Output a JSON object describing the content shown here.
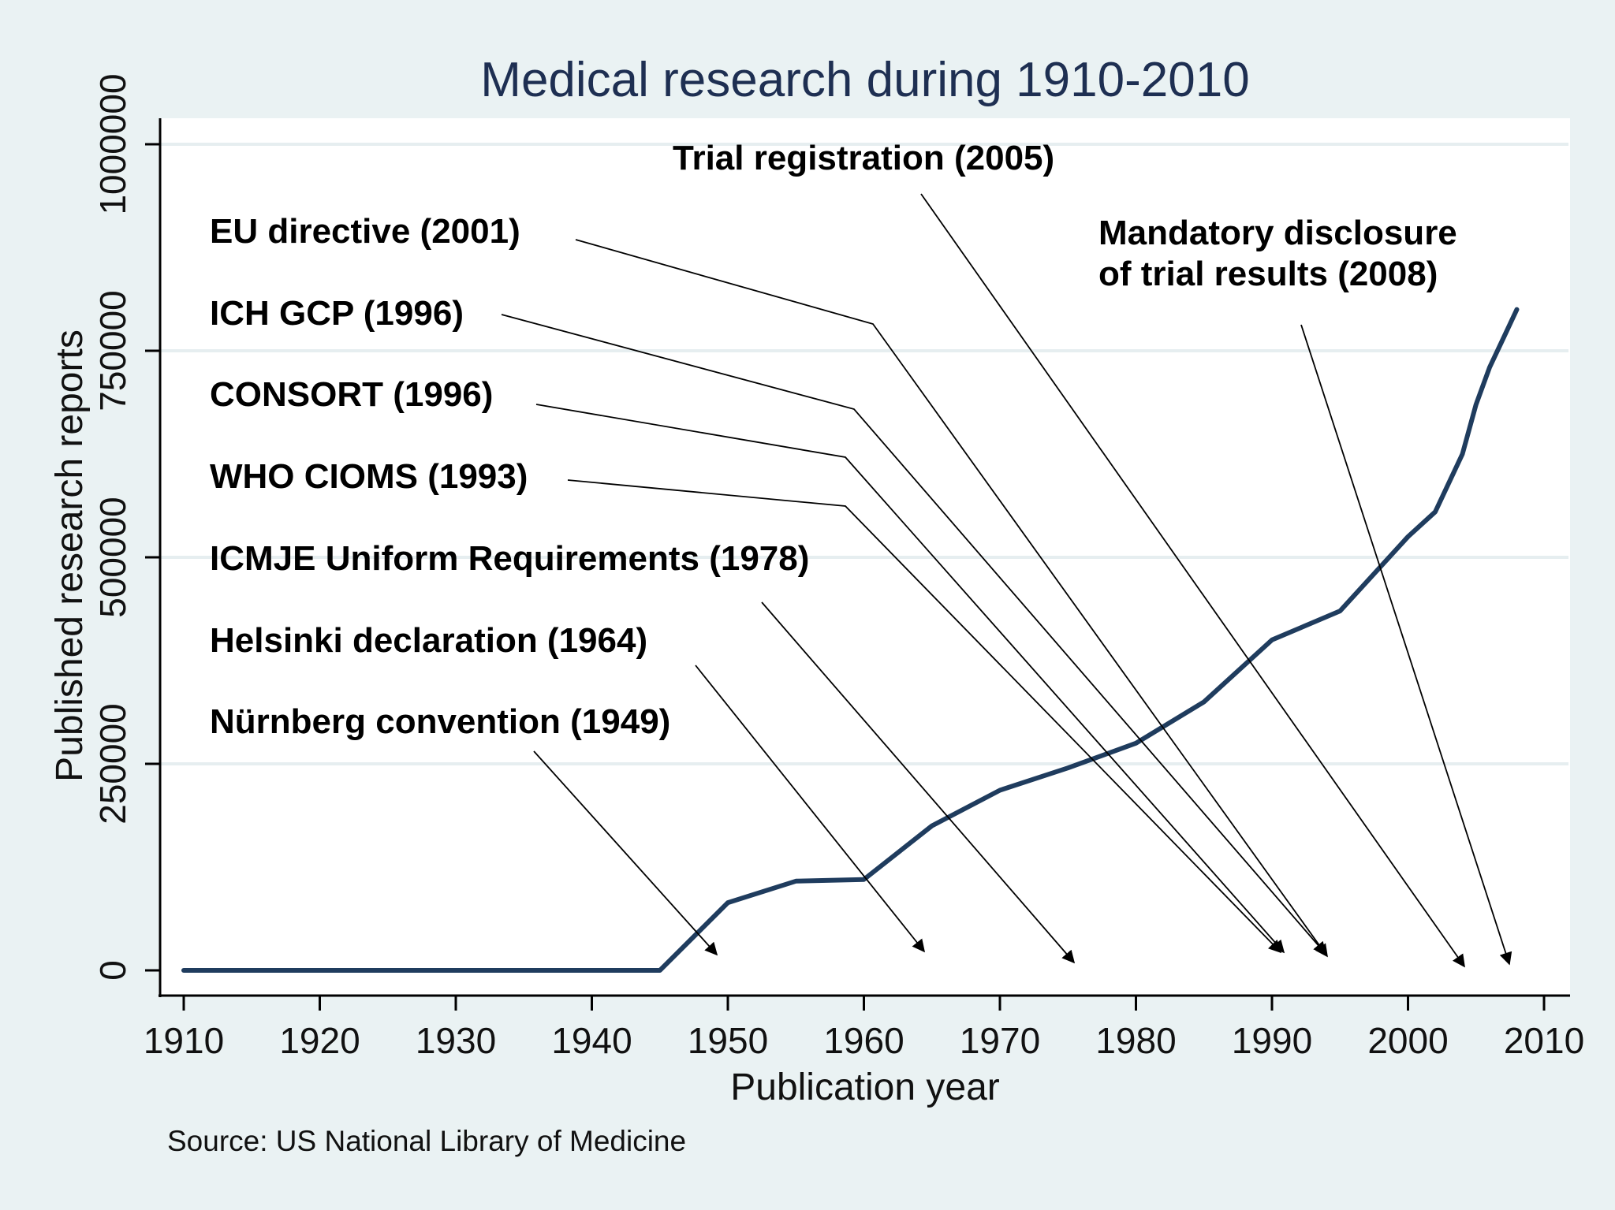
{
  "chart_data": {
    "type": "line",
    "title": "Medical research during 1910-2010",
    "xlabel": "Publication year",
    "ylabel": "Published research reports",
    "source": "Source: US National Library of Medicine",
    "xlim": [
      1910,
      2010
    ],
    "ylim": [
      0,
      1000000
    ],
    "x_ticks": [
      1910,
      1920,
      1930,
      1940,
      1950,
      1960,
      1970,
      1980,
      1990,
      2000,
      2010
    ],
    "y_ticks": [
      0,
      250000,
      500000,
      750000,
      1000000
    ],
    "y_tick_labels": [
      "0",
      "250000",
      "500000",
      "750000",
      "1000000"
    ],
    "grid": "horizontal",
    "line_color": "#1f3c5e",
    "background_color": "#eaf2f3",
    "plot_background_color": "#ffffff",
    "series": [
      {
        "x": [
          1910,
          1915,
          1920,
          1925,
          1930,
          1935,
          1940,
          1945,
          1950,
          1955,
          1960,
          1965,
          1970,
          1975,
          1980,
          1985,
          1990,
          1995,
          2000,
          2002,
          2004,
          2005,
          2006,
          2007,
          2008
        ],
        "y": [
          0,
          0,
          0,
          0,
          0,
          0,
          0,
          0,
          82000,
          108000,
          110000,
          175000,
          218000,
          245000,
          275000,
          325000,
          400000,
          435000,
          525000,
          555000,
          625000,
          685000,
          730000,
          765000,
          800000
        ]
      }
    ],
    "annotations": [
      {
        "text": "Trial registration (2005)",
        "year": 2005
      },
      {
        "text": "EU directive (2001)",
        "year": 2001
      },
      {
        "text": "Mandatory disclosure",
        "text2": "of trial results (2008)",
        "year": 2008
      },
      {
        "text": "ICH GCP (1996)",
        "year": 1996
      },
      {
        "text": "CONSORT (1996)",
        "year": 1996
      },
      {
        "text": "WHO CIOMS (1993)",
        "year": 1993
      },
      {
        "text": "ICMJE Uniform Requirements (1978)",
        "year": 1978
      },
      {
        "text": "Helsinki declaration (1964)",
        "year": 1964
      },
      {
        "text": "Nürnberg convention (1949)",
        "year": 1949
      }
    ]
  }
}
